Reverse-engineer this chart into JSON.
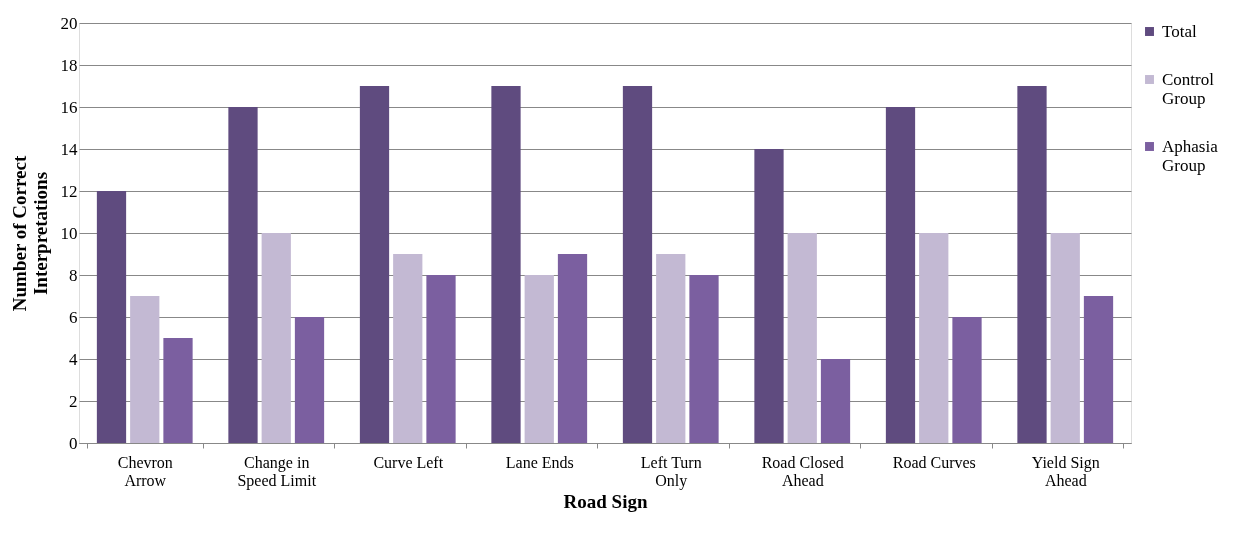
{
  "chart_data": {
    "type": "bar",
    "xlabel": "Road Sign",
    "ylabel": "Number of Correct Interpretations",
    "categories": [
      "Chevron Arrow",
      "Change in Speed Limit",
      "Curve Left",
      "Lane Ends",
      "Left Turn Only",
      "Road Closed Ahead",
      "Road Curves",
      "Yield Sign Ahead"
    ],
    "series": [
      {
        "name": "Total",
        "color": "#5f4b7f",
        "values": [
          12,
          16,
          17,
          17,
          17,
          14,
          16,
          17
        ]
      },
      {
        "name": "Control Group",
        "color": "#c3b9d3",
        "values": [
          7,
          10,
          9,
          8,
          9,
          10,
          10,
          10
        ]
      },
      {
        "name": "Aphasia Group",
        "color": "#7b5fa0",
        "values": [
          5,
          6,
          8,
          9,
          8,
          4,
          6,
          7
        ]
      }
    ],
    "ylim": [
      0,
      20
    ],
    "yticks": [
      0,
      2,
      4,
      6,
      8,
      10,
      12,
      14,
      16,
      18,
      20
    ],
    "grid": "y",
    "legend": "right"
  }
}
